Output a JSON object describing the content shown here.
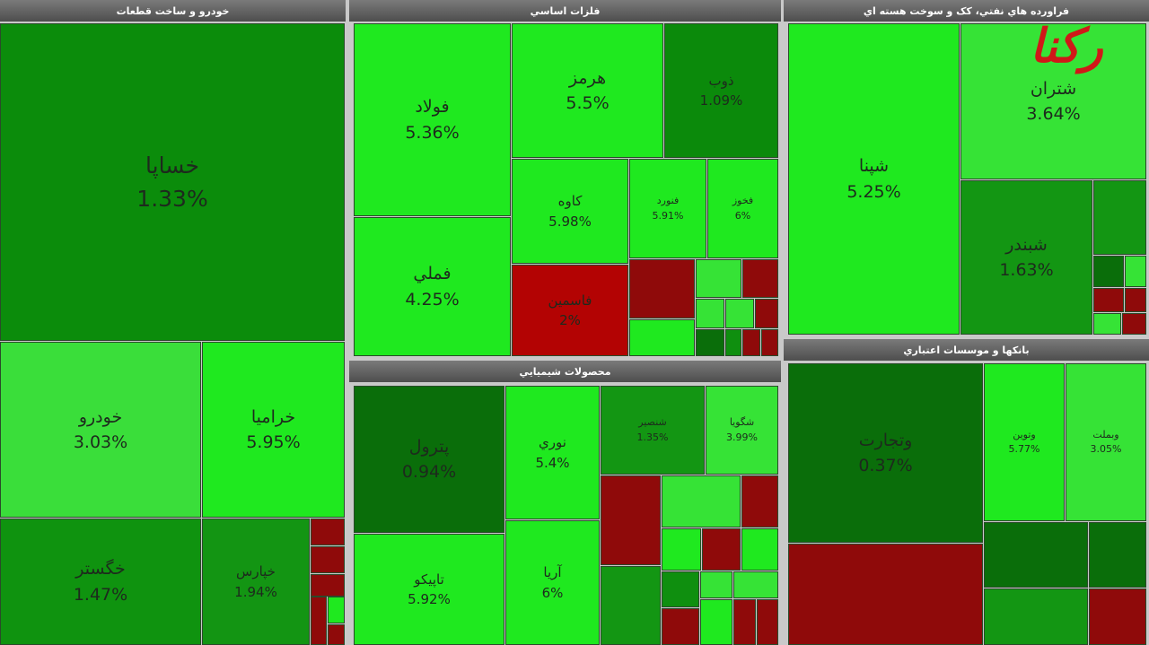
{
  "logo": "رکنا",
  "panels": [
    {
      "title": "خودرو و ساخت قطعات",
      "tiles": [
        {
          "name": "خساپا",
          "change": "1.33%",
          "color": "#0b8c0b"
        },
        {
          "name": "خودرو",
          "change": "3.03%",
          "color": "#3ade3a"
        },
        {
          "name": "خراميا",
          "change": "5.95%",
          "color": "#1fe91f"
        },
        {
          "name": "خگستر",
          "change": "1.47%",
          "color": "#0f930f"
        },
        {
          "name": "خپارس",
          "change": "1.94%",
          "color": "#139513"
        }
      ]
    },
    {
      "title": "فلزات اساسي",
      "tiles": [
        {
          "name": "فولاد",
          "change": "5.36%",
          "color": "#1fe91f"
        },
        {
          "name": "فملي",
          "change": "4.25%",
          "color": "#1fe91f"
        },
        {
          "name": "هرمز",
          "change": "5.5%",
          "color": "#1fe91f"
        },
        {
          "name": "ذوب",
          "change": "1.09%",
          "color": "#0b8a0b"
        },
        {
          "name": "کاوه",
          "change": "5.98%",
          "color": "#1fe91f"
        },
        {
          "name": "فنورد",
          "change": "5.91%",
          "color": "#1fe91f"
        },
        {
          "name": "فخوز",
          "change": "6%",
          "color": "#1fe91f"
        },
        {
          "name": "فاسمين",
          "change": "2%",
          "color": "#b30303"
        }
      ]
    },
    {
      "title": "فراورده هاي نفتي، کک و سوخت هسته اي",
      "tiles": [
        {
          "name": "شپنا",
          "change": "5.25%",
          "color": "#1fe91f"
        },
        {
          "name": "شتران",
          "change": "3.64%",
          "color": "#36e336"
        },
        {
          "name": "شبندر",
          "change": "1.63%",
          "color": "#139613"
        }
      ]
    },
    {
      "title": "محصولات شيميايي",
      "tiles": [
        {
          "name": "پترول",
          "change": "0.94%",
          "color": "#0a6e0a"
        },
        {
          "name": "تاپيکو",
          "change": "5.92%",
          "color": "#1fe91f"
        },
        {
          "name": "نوري",
          "change": "5.4%",
          "color": "#1fe91f"
        },
        {
          "name": "آريا",
          "change": "6%",
          "color": "#1fe91f"
        },
        {
          "name": "شنصير",
          "change": "1.35%",
          "color": "#139613"
        },
        {
          "name": "شگويا",
          "change": "3.99%",
          "color": "#36e336"
        }
      ]
    },
    {
      "title": "بانکها و موسسات اعتباري",
      "tiles": [
        {
          "name": "وتجارت",
          "change": "0.37%",
          "color": "#0a6e0a"
        },
        {
          "name": "وتوين",
          "change": "5.77%",
          "color": "#1fe91f"
        },
        {
          "name": "وبملت",
          "change": "3.05%",
          "color": "#36e336"
        }
      ]
    }
  ]
}
